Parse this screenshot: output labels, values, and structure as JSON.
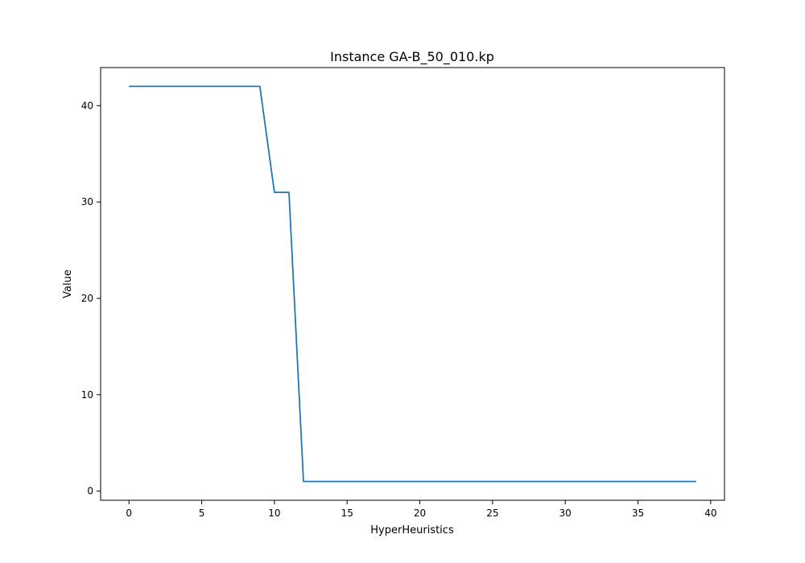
{
  "chart_data": {
    "type": "line",
    "title": "Instance GA-B_50_010.kp",
    "xlabel": "HyperHeuristics",
    "ylabel": "Value",
    "xlim": [
      -1.95,
      40.95
    ],
    "ylim": [
      -0.95,
      43.95
    ],
    "xticks": [
      0,
      5,
      10,
      15,
      20,
      25,
      30,
      35,
      40
    ],
    "yticks": [
      0,
      10,
      20,
      30,
      40
    ],
    "grid": false,
    "series": [
      {
        "color": "#1f77b4",
        "x": [
          0,
          1,
          2,
          3,
          4,
          5,
          6,
          7,
          8,
          9,
          10,
          11,
          12,
          13,
          14,
          15,
          16,
          17,
          18,
          19,
          20,
          21,
          22,
          23,
          24,
          25,
          26,
          27,
          28,
          29,
          30,
          31,
          32,
          33,
          34,
          35,
          36,
          37,
          38,
          39
        ],
        "y": [
          42,
          42,
          42,
          42,
          42,
          42,
          42,
          42,
          42,
          42,
          31,
          31,
          1,
          1,
          1,
          1,
          1,
          1,
          1,
          1,
          1,
          1,
          1,
          1,
          1,
          1,
          1,
          1,
          1,
          1,
          1,
          1,
          1,
          1,
          1,
          1,
          1,
          1,
          1,
          1
        ]
      }
    ]
  }
}
